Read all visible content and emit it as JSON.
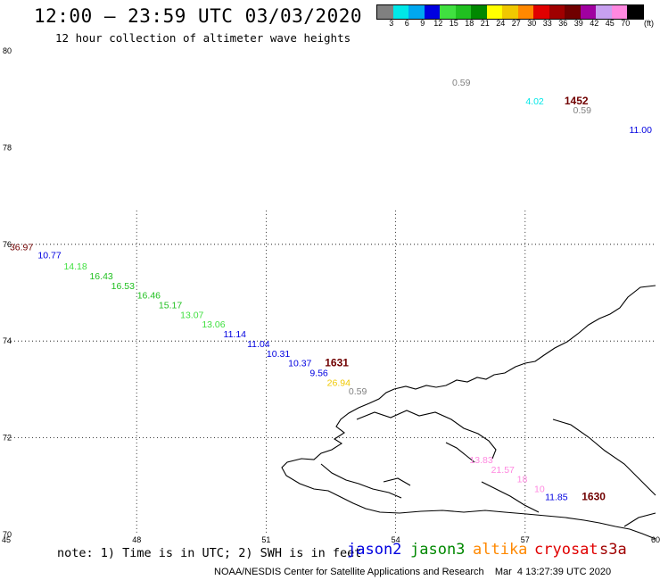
{
  "header": {
    "title": "12:00 – 23:59 UTC 03/03/2020",
    "subtitle": "12 hour collection of altimeter wave heights"
  },
  "legend": {
    "unit": "(ft)",
    "bins": [
      {
        "label": "3",
        "color": "#808080"
      },
      {
        "label": "6",
        "color": "#00e8e8"
      },
      {
        "label": "9",
        "color": "#00a8f0"
      },
      {
        "label": "12",
        "color": "#0000e0"
      },
      {
        "label": "15",
        "color": "#40e040"
      },
      {
        "label": "18",
        "color": "#20c020"
      },
      {
        "label": "21",
        "color": "#008800"
      },
      {
        "label": "24",
        "color": "#ffff00"
      },
      {
        "label": "27",
        "color": "#f0c800"
      },
      {
        "label": "30",
        "color": "#ff8800"
      },
      {
        "label": "33",
        "color": "#e00000"
      },
      {
        "label": "36",
        "color": "#a00000"
      },
      {
        "label": "39",
        "color": "#700000"
      },
      {
        "label": "42",
        "color": "#a000a0"
      },
      {
        "label": "45",
        "color": "#c8a0f0"
      },
      {
        "label": "70",
        "color": "#ff88e0"
      },
      {
        "label": "",
        "color": "#000000"
      }
    ]
  },
  "map": {
    "lon_range": [
      45,
      60
    ],
    "lat_range": [
      70,
      80
    ],
    "x_ticks": [
      "45",
      "48",
      "51",
      "54",
      "57",
      "60"
    ],
    "y_ticks": [
      "80",
      "78",
      "76",
      "74",
      "72",
      "70"
    ],
    "points": [
      {
        "text": "0.59",
        "lon": 55.6,
        "lat": 79.35,
        "color": "#808080"
      },
      {
        "text": "4.02",
        "lon": 57.3,
        "lat": 78.97,
        "color": "#00e8e8"
      },
      {
        "text": "1452",
        "lon": 58.2,
        "lat": 78.97,
        "color": "#700000",
        "bold": true
      },
      {
        "text": "0.59",
        "lon": 58.4,
        "lat": 78.78,
        "color": "#808080"
      },
      {
        "text": "11.00",
        "lon": 59.7,
        "lat": 78.38,
        "color": "#0000e0"
      },
      {
        "text": "36.97",
        "lon": 45.35,
        "lat": 75.95,
        "color": "#700000"
      },
      {
        "text": "10.77",
        "lon": 46.0,
        "lat": 75.78,
        "color": "#0000e0"
      },
      {
        "text": "14.18",
        "lon": 46.6,
        "lat": 75.55,
        "color": "#40e040"
      },
      {
        "text": "16.43",
        "lon": 47.2,
        "lat": 75.35,
        "color": "#20c020"
      },
      {
        "text": "16.53",
        "lon": 47.7,
        "lat": 75.15,
        "color": "#20c020"
      },
      {
        "text": "16.46",
        "lon": 48.3,
        "lat": 74.95,
        "color": "#20c020"
      },
      {
        "text": "15.17",
        "lon": 48.8,
        "lat": 74.75,
        "color": "#20c020"
      },
      {
        "text": "13.07",
        "lon": 49.3,
        "lat": 74.55,
        "color": "#40e040"
      },
      {
        "text": "13.06",
        "lon": 49.8,
        "lat": 74.35,
        "color": "#40e040"
      },
      {
        "text": "11.14",
        "lon": 50.3,
        "lat": 74.15,
        "color": "#0000e0"
      },
      {
        "text": "11.04",
        "lon": 50.85,
        "lat": 73.95,
        "color": "#0000e0"
      },
      {
        "text": "10.31",
        "lon": 51.3,
        "lat": 73.75,
        "color": "#0000e0"
      },
      {
        "text": "10.37",
        "lon": 51.8,
        "lat": 73.55,
        "color": "#0000e0"
      },
      {
        "text": "1631",
        "lon": 52.65,
        "lat": 73.55,
        "color": "#700000",
        "bold": true
      },
      {
        "text": "9.56",
        "lon": 52.3,
        "lat": 73.35,
        "color": "#0000e0"
      },
      {
        "text": "26.94",
        "lon": 52.7,
        "lat": 73.15,
        "color": "#f0c800"
      },
      {
        "text": "0.59",
        "lon": 53.2,
        "lat": 72.97,
        "color": "#808080"
      },
      {
        "text": "13.83",
        "lon": 56.0,
        "lat": 71.55,
        "color": "#ff88e0"
      },
      {
        "text": "21.57",
        "lon": 56.5,
        "lat": 71.35,
        "color": "#ff88e0"
      },
      {
        "text": "18",
        "lon": 57.1,
        "lat": 71.15,
        "color": "#ff88e0"
      },
      {
        "text": "10",
        "lon": 57.5,
        "lat": 70.95,
        "color": "#ff88e0"
      },
      {
        "text": "11.85",
        "lon": 57.75,
        "lat": 70.78,
        "color": "#0000e0"
      },
      {
        "text": "1630",
        "lon": 58.6,
        "lat": 70.78,
        "color": "#700000",
        "bold": true
      }
    ]
  },
  "footer": {
    "note": "note: 1) Time is in UTC; 2) SWH is in feet",
    "satellites": [
      {
        "name": "jason2",
        "color": "#0000e0"
      },
      {
        "name": "jason3",
        "color": "#008800"
      },
      {
        "name": "altika",
        "color": "#ff8800"
      },
      {
        "name": "cryosat",
        "color": "#e00000"
      },
      {
        "name": "s3a",
        "color": "#a00000"
      }
    ],
    "credit": "NOAA/NESDIS Center for Satellite Applications and Research    Mar  4 13:27:39 UTC 2020"
  }
}
